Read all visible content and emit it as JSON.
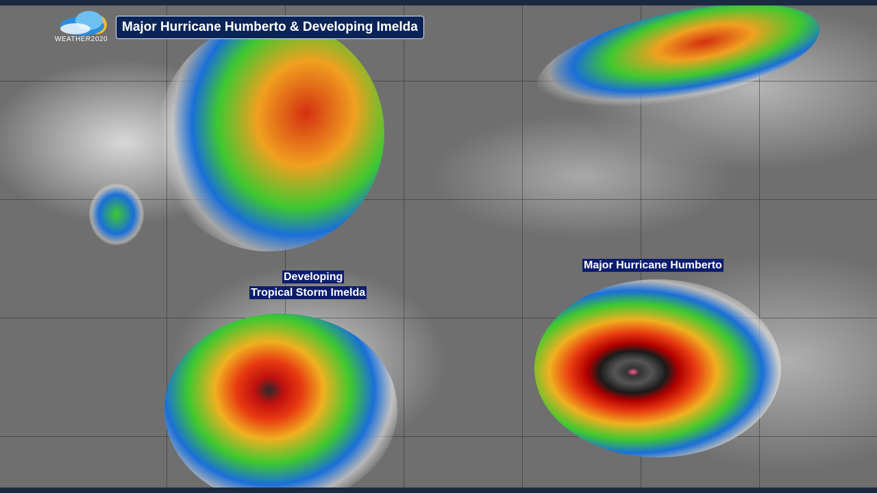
{
  "title": "Major Hurricane Humberto & Developing Imelda",
  "logo": {
    "text": "WEATHER2020"
  },
  "labels": {
    "humberto": "Major Hurricane Humberto",
    "imelda_line1": "Developing",
    "imelda_line2": "Tropical Storm Imelda"
  },
  "colors": {
    "title_bg": "#0b2458",
    "label_bg": "#0c1d6e",
    "border": "#1b2a40"
  }
}
